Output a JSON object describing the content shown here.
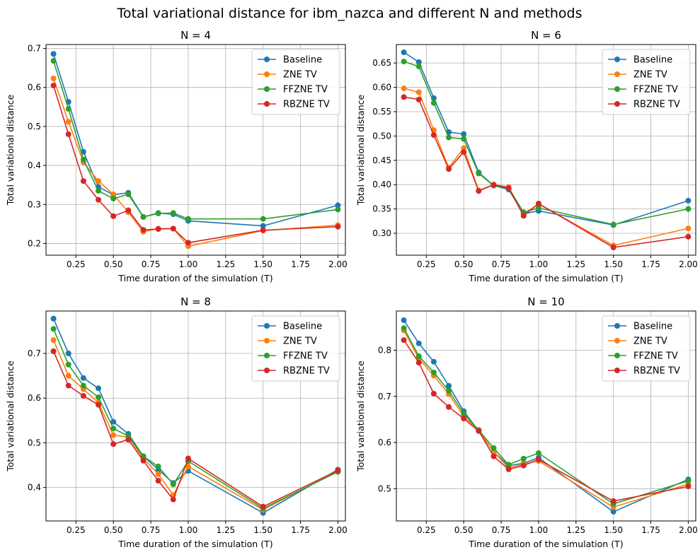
{
  "figure": {
    "suptitle": "Total variational distance for ibm_nazca and different N and methods"
  },
  "colors": {
    "Baseline": "#1f77b4",
    "ZNE TV": "#ff7f0e",
    "FFZNE TV": "#2ca02c",
    "RBZNE TV": "#d62728",
    "grid": "#b0b0b0"
  },
  "chart_data": [
    {
      "type": "line",
      "title": "N = 4",
      "xlabel": "Time duration of the simulation (T)",
      "ylabel": "Total variational distance",
      "x": [
        0.1,
        0.2,
        0.3,
        0.4,
        0.5,
        0.6,
        0.7,
        0.8,
        0.9,
        1.0,
        1.5,
        2.0
      ],
      "xlim": [
        0.05,
        2.05
      ],
      "ylim": [
        0.17,
        0.71
      ],
      "xticks": [
        0.25,
        0.5,
        0.75,
        1.0,
        1.25,
        1.5,
        1.75,
        2.0
      ],
      "xtick_labels": [
        "0.25",
        "0.50",
        "0.75",
        "1.00",
        "1.25",
        "1.50",
        "1.75",
        "2.00"
      ],
      "yticks": [
        0.2,
        0.3,
        0.4,
        0.5,
        0.6,
        0.7
      ],
      "ytick_labels": [
        "0.2",
        "0.3",
        "0.4",
        "0.5",
        "0.6",
        "0.7"
      ],
      "grid": true,
      "legend": "top-right",
      "series": [
        {
          "name": "Baseline",
          "values": [
            0.686,
            0.563,
            0.435,
            0.345,
            0.325,
            0.33,
            0.268,
            0.278,
            0.275,
            0.258,
            0.245,
            0.298
          ]
        },
        {
          "name": "ZNE TV",
          "values": [
            0.623,
            0.512,
            0.408,
            0.36,
            0.326,
            0.28,
            0.23,
            0.238,
            0.238,
            0.193,
            0.233,
            0.247
          ]
        },
        {
          "name": "FFZNE TV",
          "values": [
            0.668,
            0.545,
            0.415,
            0.335,
            0.315,
            0.326,
            0.268,
            0.277,
            0.278,
            0.263,
            0.263,
            0.287
          ]
        },
        {
          "name": "RBZNE TV",
          "values": [
            0.605,
            0.48,
            0.36,
            0.312,
            0.27,
            0.285,
            0.235,
            0.237,
            0.238,
            0.202,
            0.234,
            0.243
          ]
        }
      ]
    },
    {
      "type": "line",
      "title": "N = 6",
      "xlabel": "Time duration of the simulation (T)",
      "ylabel": "Total variational distance",
      "x": [
        0.1,
        0.2,
        0.3,
        0.4,
        0.5,
        0.6,
        0.7,
        0.8,
        0.9,
        1.0,
        1.5,
        2.0
      ],
      "xlim": [
        0.05,
        2.05
      ],
      "ylim": [
        0.255,
        0.688
      ],
      "xticks": [
        0.25,
        0.5,
        0.75,
        1.0,
        1.25,
        1.5,
        1.75,
        2.0
      ],
      "xtick_labels": [
        "0.25",
        "0.50",
        "0.75",
        "1.00",
        "1.25",
        "1.50",
        "1.75",
        "2.00"
      ],
      "yticks": [
        0.3,
        0.35,
        0.4,
        0.45,
        0.5,
        0.55,
        0.6,
        0.65
      ],
      "ytick_labels": [
        "0.30",
        "0.35",
        "0.40",
        "0.45",
        "0.50",
        "0.55",
        "0.60",
        "0.65"
      ],
      "grid": true,
      "legend": "top-right",
      "series": [
        {
          "name": "Baseline",
          "values": [
            0.672,
            0.652,
            0.578,
            0.508,
            0.504,
            0.425,
            0.398,
            0.39,
            0.34,
            0.346,
            0.317,
            0.367
          ]
        },
        {
          "name": "ZNE TV",
          "values": [
            0.598,
            0.59,
            0.512,
            0.435,
            0.475,
            0.388,
            0.4,
            0.395,
            0.34,
            0.36,
            0.275,
            0.31
          ]
        },
        {
          "name": "FFZNE TV",
          "values": [
            0.653,
            0.643,
            0.568,
            0.497,
            0.494,
            0.423,
            0.398,
            0.393,
            0.343,
            0.352,
            0.318,
            0.35
          ]
        },
        {
          "name": "RBZNE TV",
          "values": [
            0.58,
            0.575,
            0.502,
            0.432,
            0.467,
            0.387,
            0.4,
            0.393,
            0.336,
            0.361,
            0.271,
            0.293
          ]
        }
      ]
    },
    {
      "type": "line",
      "title": "N = 8",
      "xlabel": "Time duration of the simulation (T)",
      "ylabel": "Total variational distance",
      "x": [
        0.1,
        0.2,
        0.3,
        0.4,
        0.5,
        0.6,
        0.7,
        0.8,
        0.9,
        1.0,
        1.5,
        2.0
      ],
      "xlim": [
        0.05,
        2.05
      ],
      "ylim": [
        0.325,
        0.795
      ],
      "xticks": [
        0.25,
        0.5,
        0.75,
        1.0,
        1.25,
        1.5,
        1.75,
        2.0
      ],
      "xtick_labels": [
        "0.25",
        "0.50",
        "0.75",
        "1.00",
        "1.25",
        "1.50",
        "1.75",
        "2.00"
      ],
      "yticks": [
        0.4,
        0.5,
        0.6,
        0.7
      ],
      "ytick_labels": [
        "0.4",
        "0.5",
        "0.6",
        "0.7"
      ],
      "grid": true,
      "legend": "top-right",
      "series": [
        {
          "name": "Baseline",
          "values": [
            0.778,
            0.7,
            0.645,
            0.622,
            0.547,
            0.52,
            0.47,
            0.44,
            0.41,
            0.437,
            0.343,
            0.44
          ]
        },
        {
          "name": "ZNE TV",
          "values": [
            0.73,
            0.65,
            0.62,
            0.59,
            0.517,
            0.513,
            0.465,
            0.43,
            0.383,
            0.447,
            0.35,
            0.437
          ]
        },
        {
          "name": "FFZNE TV",
          "values": [
            0.755,
            0.675,
            0.628,
            0.602,
            0.532,
            0.515,
            0.47,
            0.447,
            0.407,
            0.459,
            0.353,
            0.435
          ]
        },
        {
          "name": "RBZNE TV",
          "values": [
            0.705,
            0.628,
            0.605,
            0.585,
            0.497,
            0.507,
            0.46,
            0.415,
            0.373,
            0.465,
            0.357,
            0.438
          ]
        }
      ]
    },
    {
      "type": "line",
      "title": "N = 10",
      "xlabel": "Time duration of the simulation (T)",
      "ylabel": "Total variational distance",
      "x": [
        0.1,
        0.2,
        0.3,
        0.4,
        0.5,
        0.6,
        0.7,
        0.8,
        0.9,
        1.0,
        1.5,
        2.0
      ],
      "xlim": [
        0.05,
        2.05
      ],
      "ylim": [
        0.43,
        0.885
      ],
      "xticks": [
        0.25,
        0.5,
        0.75,
        1.0,
        1.25,
        1.5,
        1.75,
        2.0
      ],
      "xtick_labels": [
        "0.25",
        "0.50",
        "0.75",
        "1.00",
        "1.25",
        "1.50",
        "1.75",
        "2.00"
      ],
      "yticks": [
        0.5,
        0.6,
        0.7,
        0.8
      ],
      "ytick_labels": [
        "0.5",
        "0.6",
        "0.7",
        "0.8"
      ],
      "grid": true,
      "legend": "top-right",
      "series": [
        {
          "name": "Baseline",
          "values": [
            0.865,
            0.815,
            0.775,
            0.723,
            0.668,
            0.625,
            0.58,
            0.55,
            0.555,
            0.567,
            0.45,
            0.52
          ]
        },
        {
          "name": "ZNE TV",
          "values": [
            0.843,
            0.782,
            0.745,
            0.705,
            0.657,
            0.627,
            0.58,
            0.545,
            0.553,
            0.56,
            0.46,
            0.51
          ]
        },
        {
          "name": "FFZNE TV",
          "values": [
            0.848,
            0.787,
            0.752,
            0.712,
            0.663,
            0.627,
            0.588,
            0.552,
            0.565,
            0.577,
            0.467,
            0.517
          ]
        },
        {
          "name": "RBZNE TV",
          "values": [
            0.822,
            0.773,
            0.706,
            0.677,
            0.652,
            0.625,
            0.57,
            0.542,
            0.55,
            0.563,
            0.473,
            0.505
          ]
        }
      ]
    }
  ]
}
